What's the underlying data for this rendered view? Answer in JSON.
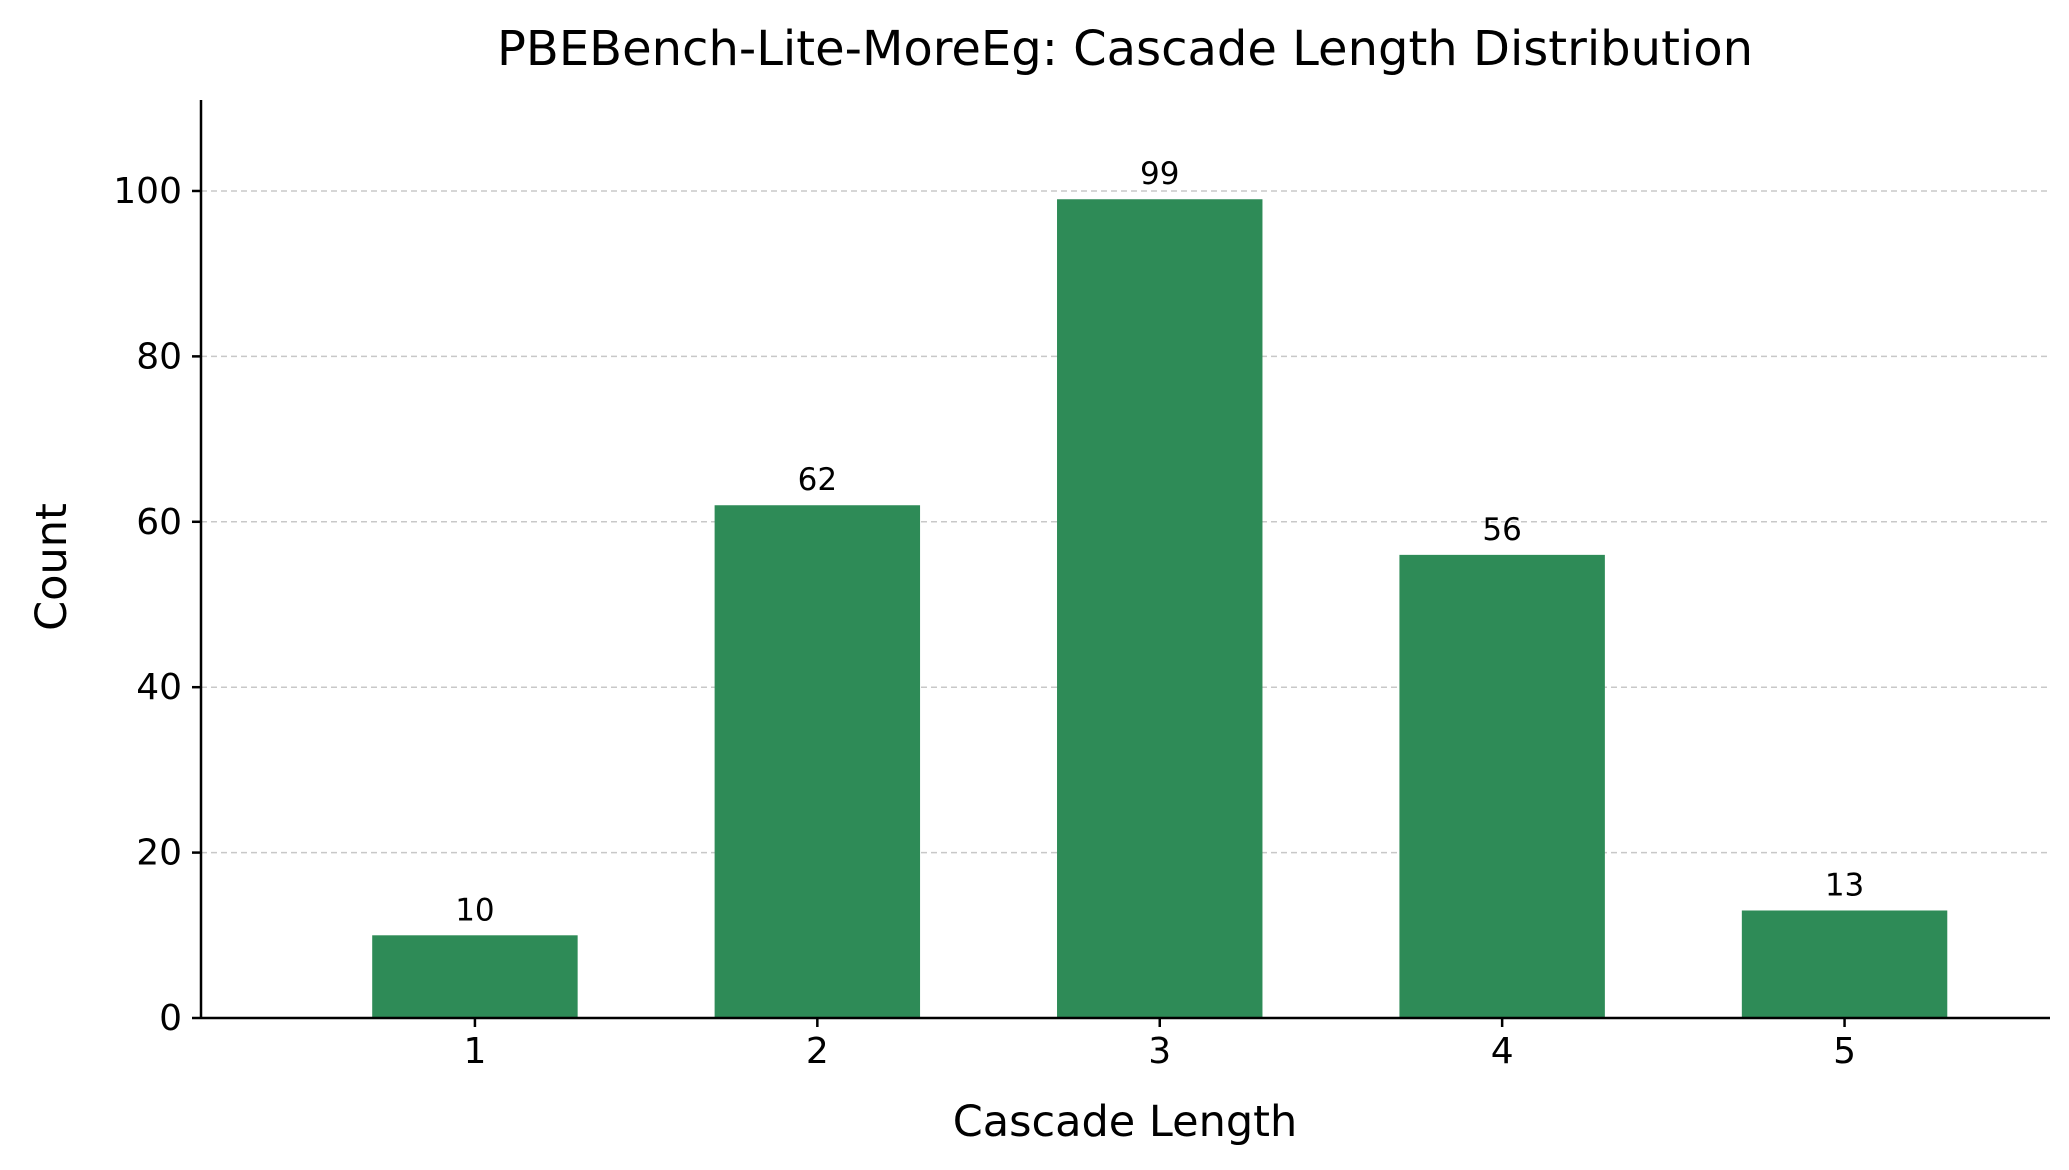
{
  "chart_data": {
    "type": "bar",
    "title": "PBEBench-Lite-MoreEg: Cascade Length Distribution",
    "xlabel": "Cascade Length",
    "ylabel": "Count",
    "categories": [
      "1",
      "2",
      "3",
      "4",
      "5"
    ],
    "values": [
      10,
      62,
      99,
      56,
      13
    ],
    "data_labels": [
      "10",
      "62",
      "99",
      "56",
      "13"
    ],
    "y_ticks": [
      0,
      20,
      40,
      60,
      80,
      100
    ],
    "ylim": [
      0,
      111
    ],
    "grid": "horizontal-dashed",
    "bar_color": "#2e8b57",
    "grid_color": "#c8c8c8",
    "axis_color": "#000000"
  }
}
